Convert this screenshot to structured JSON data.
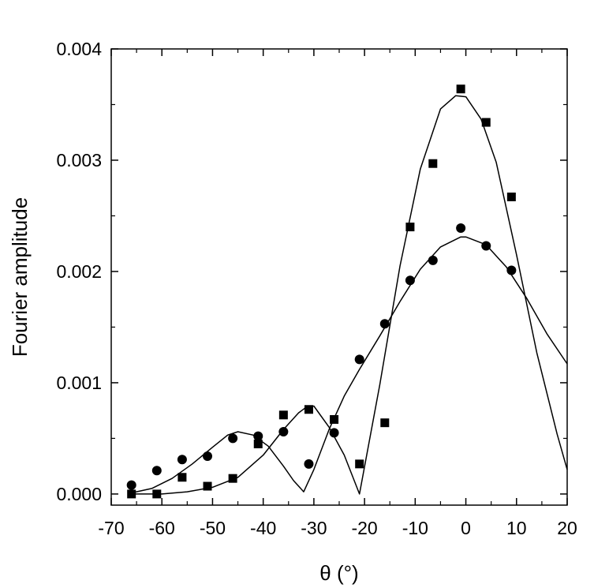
{
  "chart_data": {
    "type": "scatter",
    "xlabel": "θ (°)",
    "ylabel": "Fourier amplitude",
    "xlim": [
      -70,
      20
    ],
    "ylim": [
      -0.0001,
      0.004
    ],
    "xticks": [
      -70,
      -60,
      -50,
      -40,
      -30,
      -20,
      -10,
      0,
      10,
      20
    ],
    "xtick_labels": [
      "-70",
      "-60",
      "-50",
      "-40",
      "-30",
      "-20",
      "-10",
      "0",
      "10",
      "20"
    ],
    "yticks": [
      0.0,
      0.001,
      0.002,
      0.003,
      0.004
    ],
    "ytick_labels": [
      "0.000",
      "0.001",
      "0.002",
      "0.003",
      "0.004"
    ],
    "grid": false,
    "series": [
      {
        "marker": "square",
        "x": [
          -66,
          -61,
          -56,
          -51,
          -46,
          -41,
          -36,
          -31,
          -26,
          -21,
          -16,
          -11,
          -6.5,
          -1,
          4,
          9
        ],
        "y": [
          0.0,
          0.0,
          0.00015,
          7e-05,
          0.00014,
          0.00045,
          0.00071,
          0.00076,
          0.00067,
          0.00027,
          0.00064,
          0.0024,
          0.00297,
          0.00364,
          0.00334,
          0.00267
        ]
      },
      {
        "marker": "circle",
        "x": [
          -66,
          -61,
          -56,
          -51,
          -46,
          -41,
          -36,
          -31,
          -26,
          -21,
          -16,
          -11,
          -6.5,
          -1,
          4,
          9
        ],
        "y": [
          8e-05,
          0.00021,
          0.00031,
          0.00034,
          0.0005,
          0.00052,
          0.00056,
          0.00027,
          0.00055,
          0.00121,
          0.00153,
          0.00192,
          0.0021,
          0.00239,
          0.00223,
          0.00201
        ]
      }
    ],
    "fit_curves": [
      {
        "x": [
          -66,
          -60,
          -55,
          -50,
          -45,
          -40,
          -36,
          -33,
          -31.5,
          -30,
          -27,
          -24,
          -21,
          -17,
          -13,
          -9,
          -5,
          -2,
          0,
          3,
          6,
          10,
          14,
          18,
          20
        ],
        "y": [
          0.0,
          0.0,
          2e-05,
          6e-05,
          0.00015,
          0.00035,
          0.00058,
          0.00073,
          0.00078,
          0.00079,
          0.0006,
          0.00035,
          0.0,
          0.00098,
          0.00205,
          0.00292,
          0.00346,
          0.00358,
          0.00357,
          0.00337,
          0.00298,
          0.00215,
          0.00127,
          0.00054,
          0.00022
        ]
      },
      {
        "x": [
          -66,
          -62,
          -58,
          -54,
          -50,
          -47,
          -45,
          -42,
          -39,
          -36,
          -34,
          -32,
          -30,
          -27,
          -24,
          -21,
          -17,
          -13,
          -9,
          -5,
          -1,
          0,
          4,
          8,
          12,
          16,
          20
        ],
        "y": [
          1e-05,
          5e-05,
          0.00014,
          0.00027,
          0.00042,
          0.00053,
          0.00056,
          0.00053,
          0.00043,
          0.00025,
          0.00012,
          2e-05,
          0.00022,
          0.00058,
          0.00088,
          0.00112,
          0.00142,
          0.00173,
          0.00202,
          0.00222,
          0.00231,
          0.00231,
          0.00224,
          0.00204,
          0.00176,
          0.00144,
          0.00117
        ]
      }
    ]
  }
}
